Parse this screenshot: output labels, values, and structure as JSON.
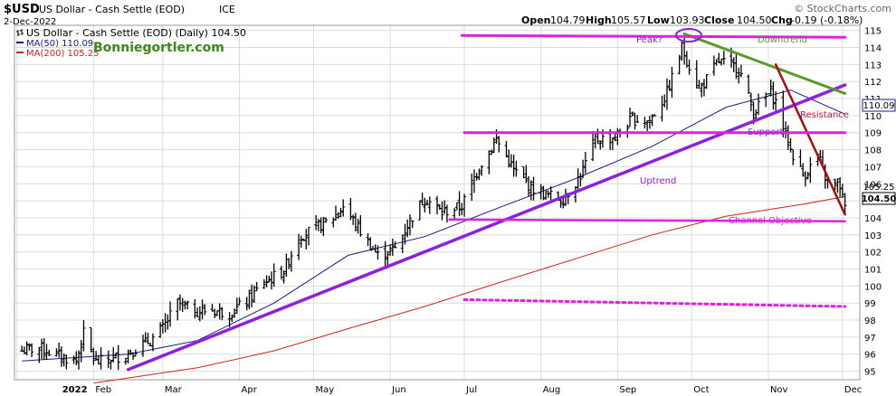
{
  "header": {
    "symbol": "$USD",
    "name": "US Dollar - Cash Settle (EOD)",
    "exchange": "ICE",
    "watermark": "© StockCharts.com",
    "date": "2-Dec-2022",
    "open_label": "Open",
    "open": "104.79",
    "high_label": "High",
    "high": "105.57",
    "low_label": "Low",
    "low": "103.93",
    "close_label": "Close",
    "close": "104.50",
    "chg_label": "Chg",
    "chg": "-0.19 (-0.18%)"
  },
  "legend": {
    "price": "US Dollar - Cash Settle (EOD) (Daily) 104.50",
    "ma50": "MA(50) 110.09",
    "ma200": "MA(200) 105.25",
    "site": "Bonniegortler.com"
  },
  "annotations": {
    "peak": "Peak?",
    "downtrend": "Downtrend",
    "resistance": "Resistance",
    "support": "Support",
    "uptrend": "Uptrend",
    "channel_objective": "Channel Objective"
  },
  "colors": {
    "bars": "#000000",
    "ma50": "#1a1a8c",
    "ma200": "#d42020",
    "magenta": "#e020e0",
    "purple": "#9020e0",
    "green": "#5a9a2a",
    "darkred": "#a01010",
    "grid": "#dcdcdc"
  },
  "chart_data": {
    "type": "ohlc",
    "x_ticks": [
      "2022",
      "Feb",
      "Mar",
      "Apr",
      "May",
      "Jun",
      "Jul",
      "Aug",
      "Sep",
      "Oct",
      "Nov",
      "Dec"
    ],
    "y_ticks": [
      95,
      96,
      97,
      98,
      99,
      100,
      101,
      102,
      103,
      104,
      105,
      106,
      107,
      108,
      109,
      110,
      111,
      112,
      113,
      114,
      115
    ],
    "ylim": [
      94.5,
      115.3
    ],
    "y_axis_labels": [
      "110.09",
      "105.25",
      "104.50"
    ],
    "close_series_approx": [
      [
        "2022-01-03",
        96.2
      ],
      [
        "2022-01-10",
        96.4
      ],
      [
        "2022-01-18",
        95.9
      ],
      [
        "2022-01-25",
        95.6
      ],
      [
        "2022-01-28",
        97.2
      ],
      [
        "2022-02-02",
        95.5
      ],
      [
        "2022-02-07",
        95.7
      ],
      [
        "2022-02-14",
        96.0
      ],
      [
        "2022-02-24",
        96.8
      ],
      [
        "2022-03-01",
        97.5
      ],
      [
        "2022-03-07",
        99.0
      ],
      [
        "2022-03-14",
        98.5
      ],
      [
        "2022-03-21",
        98.6
      ],
      [
        "2022-03-28",
        98.4
      ],
      [
        "2022-04-04",
        99.1
      ],
      [
        "2022-04-11",
        100.2
      ],
      [
        "2022-04-19",
        100.9
      ],
      [
        "2022-04-25",
        102.9
      ],
      [
        "2022-05-02",
        103.4
      ],
      [
        "2022-05-09",
        104.0
      ],
      [
        "2022-05-13",
        104.7
      ],
      [
        "2022-05-20",
        103.2
      ],
      [
        "2022-05-27",
        101.8
      ],
      [
        "2022-06-03",
        102.2
      ],
      [
        "2022-06-10",
        104.1
      ],
      [
        "2022-06-15",
        105.2
      ],
      [
        "2022-06-22",
        104.3
      ],
      [
        "2022-06-30",
        104.7
      ],
      [
        "2022-07-07",
        107.0
      ],
      [
        "2022-07-14",
        108.6
      ],
      [
        "2022-07-21",
        106.8
      ],
      [
        "2022-07-28",
        105.8
      ],
      [
        "2022-08-02",
        105.4
      ],
      [
        "2022-08-10",
        105.1
      ],
      [
        "2022-08-17",
        106.5
      ],
      [
        "2022-08-23",
        108.6
      ],
      [
        "2022-08-31",
        108.7
      ],
      [
        "2022-09-07",
        109.8
      ],
      [
        "2022-09-14",
        109.7
      ],
      [
        "2022-09-21",
        111.3
      ],
      [
        "2022-09-27",
        114.0
      ],
      [
        "2022-10-04",
        111.5
      ],
      [
        "2022-10-12",
        113.2
      ],
      [
        "2022-10-20",
        112.8
      ],
      [
        "2022-10-26",
        110.2
      ],
      [
        "2022-11-02",
        111.4
      ],
      [
        "2022-11-04",
        110.8
      ],
      [
        "2022-11-10",
        108.0
      ],
      [
        "2022-11-15",
        106.5
      ],
      [
        "2022-11-21",
        107.5
      ],
      [
        "2022-11-25",
        106.0
      ],
      [
        "2022-11-30",
        105.9
      ],
      [
        "2022-12-02",
        104.5
      ]
    ],
    "ma50_approx": [
      [
        "2022-01-03",
        95.6
      ],
      [
        "2022-02-15",
        96.0
      ],
      [
        "2022-03-15",
        96.8
      ],
      [
        "2022-04-15",
        99.0
      ],
      [
        "2022-05-15",
        101.8
      ],
      [
        "2022-06-15",
        102.9
      ],
      [
        "2022-07-15",
        104.6
      ],
      [
        "2022-08-15",
        106.3
      ],
      [
        "2022-09-15",
        108.2
      ],
      [
        "2022-10-15",
        110.5
      ],
      [
        "2022-11-10",
        111.5
      ],
      [
        "2022-12-02",
        110.09
      ]
    ],
    "ma200_approx": [
      [
        "2022-02-01",
        94.3
      ],
      [
        "2022-03-15",
        95.2
      ],
      [
        "2022-04-15",
        96.2
      ],
      [
        "2022-05-15",
        97.5
      ],
      [
        "2022-06-15",
        98.8
      ],
      [
        "2022-07-15",
        100.2
      ],
      [
        "2022-08-15",
        101.6
      ],
      [
        "2022-09-15",
        103.0
      ],
      [
        "2022-10-15",
        104.1
      ],
      [
        "2022-11-15",
        104.8
      ],
      [
        "2022-12-02",
        105.25
      ]
    ],
    "trendlines": [
      {
        "name": "uptrend",
        "from": [
          "2022-02-15",
          95.1
        ],
        "to": [
          "2022-12-02",
          111.8
        ]
      },
      {
        "name": "downtrend",
        "from": [
          "2022-09-28",
          114.8
        ],
        "to": [
          "2022-12-02",
          111.3
        ]
      },
      {
        "name": "steep-down",
        "from": [
          "2022-11-04",
          113.0
        ],
        "to": [
          "2022-12-02",
          104.2
        ]
      },
      {
        "name": "top-channel",
        "from": [
          "2022-06-30",
          114.7
        ],
        "to": [
          "2022-12-02",
          114.6
        ]
      },
      {
        "name": "support-resistance",
        "from": [
          "2022-07-01",
          109.0
        ],
        "to": [
          "2022-12-02",
          109.0
        ]
      },
      {
        "name": "channel-bottom",
        "from": [
          "2022-06-25",
          103.9
        ],
        "to": [
          "2022-12-02",
          103.8
        ]
      },
      {
        "name": "channel-objective",
        "from": [
          "2022-07-01",
          99.2
        ],
        "to": [
          "2022-12-02",
          98.8
        ]
      }
    ]
  }
}
